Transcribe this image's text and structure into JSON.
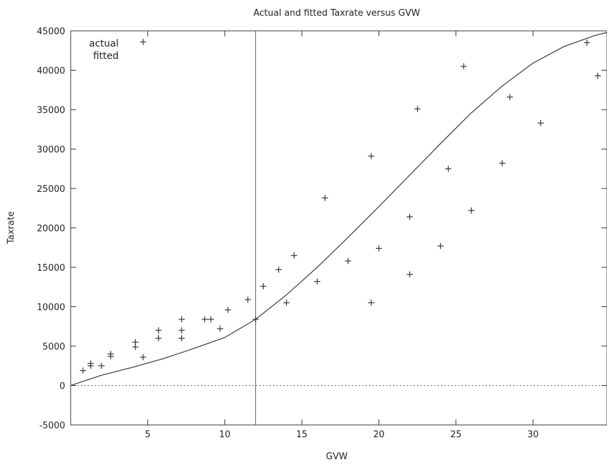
{
  "chart_data": {
    "type": "scatter",
    "title": "Actual and fitted Taxrate versus GVW",
    "xlabel": "GVW",
    "ylabel": "Taxrate",
    "xlim": [
      0,
      34.8
    ],
    "ylim": [
      -5000,
      45000
    ],
    "xticks": [
      5,
      10,
      15,
      20,
      25,
      30
    ],
    "yticks": [
      -5000,
      0,
      5000,
      10000,
      15000,
      20000,
      25000,
      30000,
      35000,
      40000,
      45000
    ],
    "grid": false,
    "zero_line": true,
    "vertical_line_x": 12,
    "legend": {
      "placement": "top-left",
      "entries": [
        "actual",
        "fitted"
      ]
    },
    "series": [
      {
        "name": "actual",
        "kind": "points",
        "x": [
          0.8,
          1.3,
          1.3,
          2.0,
          2.6,
          2.6,
          4.2,
          4.2,
          4.7,
          4.7,
          5.7,
          5.7,
          7.2,
          7.2,
          7.2,
          8.7,
          9.1,
          9.7,
          10.2,
          11.5,
          12.0,
          12.5,
          13.5,
          14.0,
          14.5,
          16.0,
          16.5,
          18.0,
          19.5,
          19.5,
          20.0,
          22.0,
          22.0,
          22.5,
          24.0,
          24.5,
          25.5,
          26.0,
          28.0,
          28.5,
          30.5,
          33.5,
          34.2
        ],
        "y": [
          1900,
          2500,
          2800,
          2500,
          3700,
          4000,
          4900,
          5500,
          3600,
          43600,
          6000,
          7000,
          6000,
          7000,
          8400,
          8400,
          8400,
          7200,
          9600,
          10900,
          8400,
          12600,
          14700,
          10500,
          16500,
          13200,
          23800,
          15800,
          10500,
          29100,
          17400,
          14100,
          21400,
          35100,
          17700,
          27500,
          40500,
          22200,
          28200,
          36600,
          33300,
          43500,
          39300
        ]
      },
      {
        "name": "fitted",
        "kind": "line",
        "x": [
          0,
          2,
          4,
          6,
          8,
          10,
          12,
          14,
          16,
          18,
          20,
          22,
          24,
          26,
          28,
          30,
          32,
          34,
          34.8
        ],
        "y": [
          0,
          1300,
          2300,
          3400,
          4700,
          6100,
          8400,
          11500,
          15000,
          18800,
          22700,
          26700,
          30700,
          34600,
          38000,
          40900,
          43000,
          44400,
          44800
        ]
      }
    ]
  }
}
